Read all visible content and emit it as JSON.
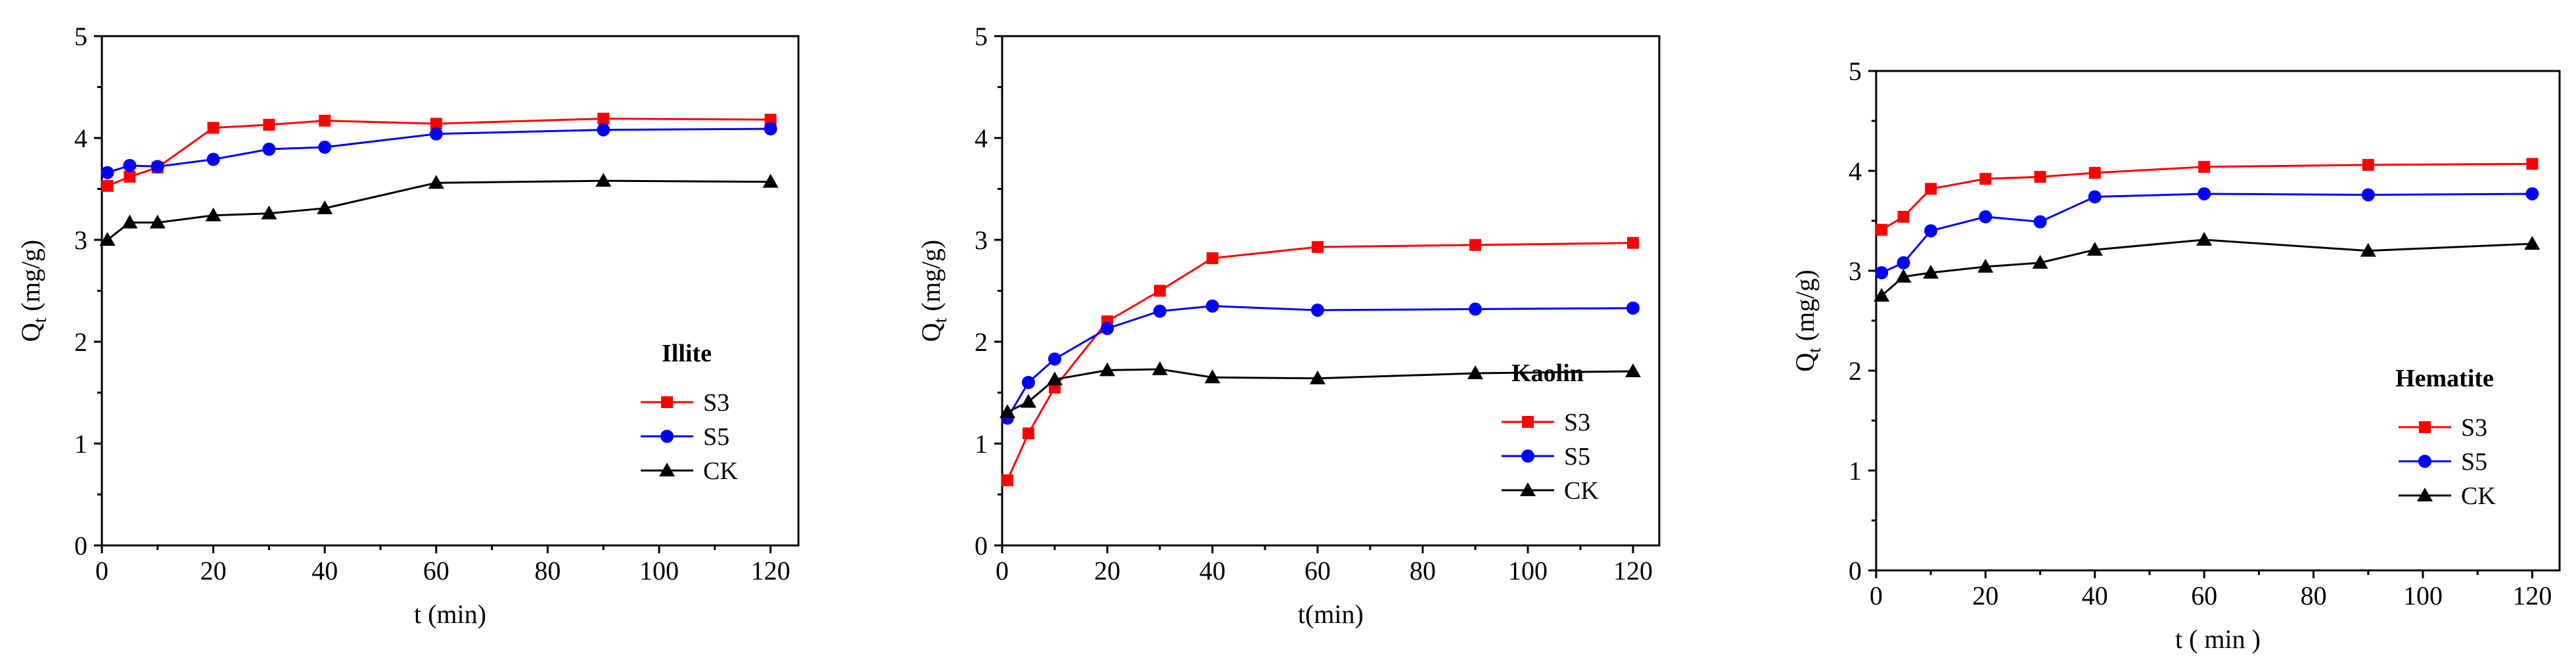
{
  "chart_data": [
    {
      "type": "line",
      "title": "",
      "legend_title": "Illite",
      "legend_position": "bottom-right",
      "xlabel": "t (min)",
      "ylabel": "Q",
      "ylabel_sub": "t",
      "ylabel_unit": " (mg/g)",
      "xlim": [
        0,
        125
      ],
      "ylim": [
        0,
        5
      ],
      "xticks": [
        "0",
        "20",
        "40",
        "60",
        "80",
        "100",
        "120"
      ],
      "yticks": [
        "0",
        "1",
        "2",
        "3",
        "4",
        "5"
      ],
      "x": [
        1,
        5,
        10,
        20,
        30,
        40,
        60,
        90,
        120
      ],
      "series": [
        {
          "name": "S3",
          "color": "#ff0000",
          "marker": "square",
          "values": [
            3.53,
            3.62,
            3.71,
            4.1,
            4.13,
            4.17,
            4.14,
            4.19,
            4.18
          ]
        },
        {
          "name": "S5",
          "color": "#0000ff",
          "marker": "circle",
          "values": [
            3.66,
            3.73,
            3.72,
            3.79,
            3.89,
            3.91,
            4.04,
            4.08,
            4.09
          ]
        },
        {
          "name": "CK",
          "color": "#000000",
          "marker": "triangle",
          "values": [
            3.0,
            3.17,
            3.17,
            3.24,
            3.26,
            3.31,
            3.56,
            3.58,
            3.57
          ]
        }
      ]
    },
    {
      "type": "line",
      "title": "",
      "legend_title": "Kaolin",
      "legend_position": "bottom-right",
      "xlabel": "t(min)",
      "ylabel": "Q",
      "ylabel_sub": "t",
      "ylabel_unit": " (mg/g)",
      "xlim": [
        0,
        125
      ],
      "ylim": [
        0,
        5
      ],
      "xticks": [
        "0",
        "20",
        "40",
        "60",
        "80",
        "100",
        "120"
      ],
      "yticks": [
        "0",
        "1",
        "2",
        "3",
        "4",
        "5"
      ],
      "x": [
        1,
        5,
        10,
        20,
        30,
        40,
        60,
        90,
        120
      ],
      "series": [
        {
          "name": "S3",
          "color": "#ff0000",
          "marker": "square",
          "values": [
            0.64,
            1.1,
            1.55,
            2.2,
            2.5,
            2.82,
            2.93,
            2.95,
            2.97
          ]
        },
        {
          "name": "S5",
          "color": "#0000ff",
          "marker": "circle",
          "values": [
            1.25,
            1.6,
            1.83,
            2.13,
            2.3,
            2.35,
            2.31,
            2.32,
            2.33
          ]
        },
        {
          "name": "CK",
          "color": "#000000",
          "marker": "triangle",
          "values": [
            1.31,
            1.41,
            1.63,
            1.72,
            1.73,
            1.65,
            1.64,
            1.69,
            1.71
          ]
        }
      ]
    },
    {
      "type": "line",
      "title": "",
      "legend_title": "Hematite",
      "legend_position": "bottom-right",
      "xlabel": "t ( min )",
      "ylabel": "Q",
      "ylabel_sub": "t",
      "ylabel_unit": " (mg/g)",
      "xlim": [
        0,
        125
      ],
      "ylim": [
        0,
        5
      ],
      "xticks": [
        "0",
        "20",
        "40",
        "60",
        "80",
        "100",
        "120"
      ],
      "yticks": [
        "0",
        "1",
        "2",
        "3",
        "4",
        "5"
      ],
      "x": [
        1,
        5,
        10,
        20,
        30,
        40,
        60,
        90,
        120
      ],
      "series": [
        {
          "name": "S3",
          "color": "#ff0000",
          "marker": "square",
          "values": [
            3.41,
            3.54,
            3.82,
            3.92,
            3.94,
            3.98,
            4.04,
            4.06,
            4.07
          ]
        },
        {
          "name": "S5",
          "color": "#0000ff",
          "marker": "circle",
          "values": [
            2.98,
            3.08,
            3.4,
            3.54,
            3.49,
            3.74,
            3.77,
            3.76,
            3.77
          ]
        },
        {
          "name": "CK",
          "color": "#000000",
          "marker": "triangle",
          "values": [
            2.75,
            2.94,
            2.98,
            3.04,
            3.08,
            3.21,
            3.31,
            3.2,
            3.27
          ]
        }
      ]
    }
  ]
}
